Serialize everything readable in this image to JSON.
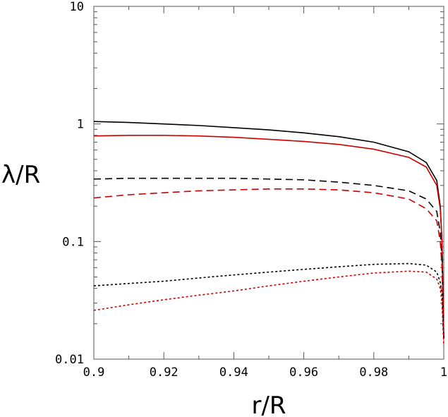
{
  "chart_data": {
    "type": "line",
    "title": "",
    "xlabel": "r/R",
    "ylabel": "λ/R",
    "xlim": [
      0.9,
      1.0
    ],
    "ylim": [
      0.01,
      10
    ],
    "yscale": "log",
    "grid": false,
    "legend": "none",
    "x_ticks": [
      {
        "value": 0.9,
        "label": "0.9"
      },
      {
        "value": 0.92,
        "label": "0.92"
      },
      {
        "value": 0.94,
        "label": "0.94"
      },
      {
        "value": 0.96,
        "label": "0.96"
      },
      {
        "value": 0.98,
        "label": "0.98"
      },
      {
        "value": 1.0,
        "label": "1"
      }
    ],
    "y_ticks": [
      {
        "value": 0.01,
        "label": "0.01"
      },
      {
        "value": 0.1,
        "label": "0.1"
      },
      {
        "value": 1,
        "label": "1"
      },
      {
        "value": 10,
        "label": "10"
      }
    ],
    "series": [
      {
        "color": "#000000",
        "style": "solid",
        "x": [
          0.9,
          0.91,
          0.92,
          0.93,
          0.94,
          0.95,
          0.96,
          0.97,
          0.98,
          0.99,
          0.995,
          0.998,
          0.999,
          0.9995,
          1.0
        ],
        "y": [
          1.05,
          1.03,
          1.0,
          0.97,
          0.93,
          0.89,
          0.84,
          0.78,
          0.7,
          0.58,
          0.47,
          0.33,
          0.2,
          0.1,
          0.015
        ]
      },
      {
        "color": "#cc0000",
        "style": "solid",
        "x": [
          0.9,
          0.91,
          0.92,
          0.93,
          0.94,
          0.95,
          0.96,
          0.97,
          0.98,
          0.99,
          0.995,
          0.998,
          0.999,
          0.9995,
          1.0
        ],
        "y": [
          0.79,
          0.8,
          0.8,
          0.79,
          0.77,
          0.74,
          0.71,
          0.67,
          0.61,
          0.52,
          0.43,
          0.3,
          0.19,
          0.1,
          0.015
        ]
      },
      {
        "color": "#000000",
        "style": "dashed",
        "x": [
          0.9,
          0.91,
          0.92,
          0.93,
          0.94,
          0.95,
          0.96,
          0.97,
          0.98,
          0.99,
          0.995,
          0.998,
          0.999,
          0.9995,
          1.0
        ],
        "y": [
          0.34,
          0.345,
          0.345,
          0.345,
          0.345,
          0.34,
          0.335,
          0.32,
          0.3,
          0.27,
          0.23,
          0.18,
          0.12,
          0.07,
          0.015
        ]
      },
      {
        "color": "#cc0000",
        "style": "dashed",
        "x": [
          0.9,
          0.91,
          0.92,
          0.93,
          0.94,
          0.95,
          0.96,
          0.97,
          0.98,
          0.99,
          0.995,
          0.998,
          0.999,
          0.9995,
          1.0
        ],
        "y": [
          0.235,
          0.25,
          0.26,
          0.27,
          0.275,
          0.28,
          0.28,
          0.275,
          0.26,
          0.23,
          0.19,
          0.15,
          0.1,
          0.06,
          0.015
        ]
      },
      {
        "color": "#000000",
        "style": "dotted",
        "x": [
          0.9,
          0.91,
          0.92,
          0.93,
          0.94,
          0.95,
          0.96,
          0.97,
          0.98,
          0.99,
          0.995,
          0.998,
          0.999,
          0.9995,
          1.0
        ],
        "y": [
          0.042,
          0.044,
          0.046,
          0.049,
          0.052,
          0.055,
          0.058,
          0.061,
          0.064,
          0.065,
          0.063,
          0.055,
          0.045,
          0.035,
          0.015
        ]
      },
      {
        "color": "#cc0000",
        "style": "dotted",
        "x": [
          0.9,
          0.91,
          0.92,
          0.93,
          0.94,
          0.95,
          0.96,
          0.97,
          0.98,
          0.99,
          0.995,
          0.998,
          0.999,
          0.9995,
          1.0
        ],
        "y": [
          0.026,
          0.029,
          0.032,
          0.035,
          0.038,
          0.042,
          0.046,
          0.05,
          0.054,
          0.056,
          0.055,
          0.048,
          0.04,
          0.03,
          0.013
        ]
      }
    ]
  }
}
